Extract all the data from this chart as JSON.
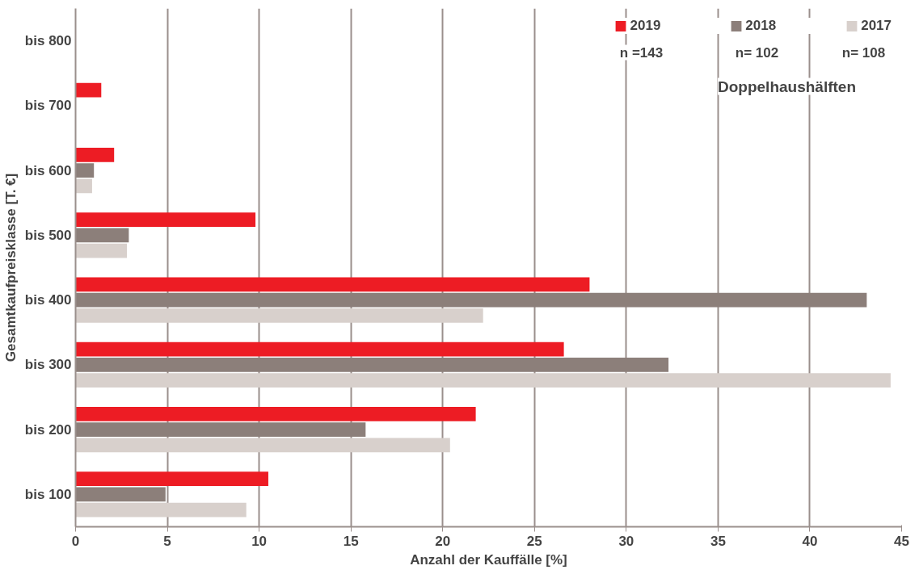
{
  "chart_data": {
    "type": "bar",
    "orientation": "horizontal",
    "xlabel": "Anzahl der Kauffälle [%]",
    "ylabel": "Gesamtkaufpreisklasse [T. €]",
    "categories": [
      "bis 800",
      "bis 700",
      "bis 600",
      "bis 500",
      "bis 400",
      "bis 300",
      "bis 200",
      "bis 100"
    ],
    "series": [
      {
        "name": "2019",
        "color": "#ed1c24",
        "values": [
          null,
          1.4,
          2.1,
          9.8,
          28.0,
          26.6,
          21.8,
          10.5
        ]
      },
      {
        "name": "2018",
        "color": "#8c7f7a",
        "values": [
          null,
          null,
          1.0,
          2.9,
          43.1,
          32.3,
          15.8,
          4.9
        ]
      },
      {
        "name": "2017",
        "color": "#d8d0cc",
        "values": [
          null,
          null,
          0.9,
          2.8,
          22.2,
          44.4,
          20.4,
          9.3
        ]
      }
    ],
    "xlim": [
      0,
      45
    ],
    "xticks": [
      0,
      5,
      10,
      15,
      20,
      25,
      30,
      35,
      40,
      45
    ],
    "grid": "x",
    "legend": "top right",
    "annotations": [
      "n =143",
      "n= 102",
      "n= 108",
      "Doppelhaushälften"
    ]
  }
}
